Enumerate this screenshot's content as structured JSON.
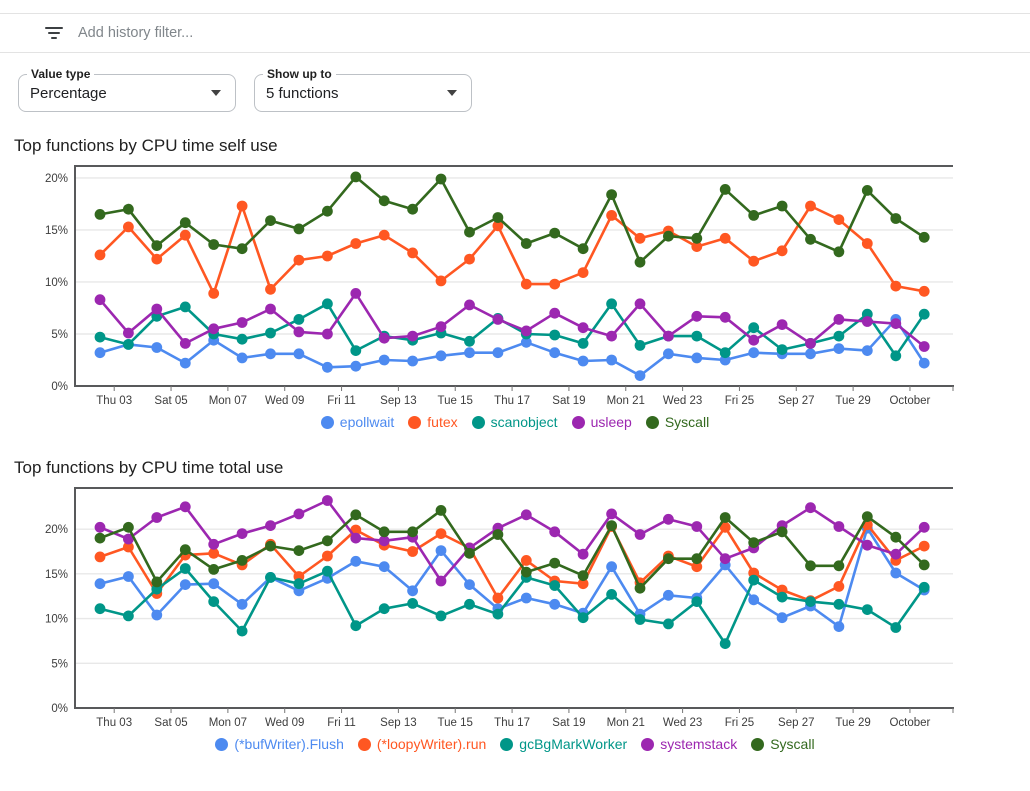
{
  "filter_bar": {
    "icon": "filter-list-icon",
    "placeholder": "Add history filter..."
  },
  "controls": {
    "value_type": {
      "label": "Value type",
      "value": "Percentage"
    },
    "show_up_to": {
      "label": "Show up to",
      "value": "5 functions"
    }
  },
  "colors": {
    "blue": "#4d8af0",
    "orange": "#ff5722",
    "teal": "#009688",
    "purple": "#9c27b0",
    "green": "#33691e",
    "grid": "#e8e8e8",
    "frame": "#58595b",
    "axis_text": "#3d3d3d"
  },
  "chart_data": [
    {
      "type": "line",
      "title": "Top functions by CPU time self use",
      "x_tick_labels": [
        "Thu 03",
        "Sat 05",
        "Mon 07",
        "Wed 09",
        "Fri 11",
        "Sep 13",
        "Tue 15",
        "Thu 17",
        "Sat 19",
        "Mon 21",
        "Wed 23",
        "Fri 25",
        "Sep 27",
        "Tue 29",
        "October"
      ],
      "x_note": "30 daily samples; labeled ticks fall between samples, every 2 days",
      "yticks": [
        0,
        5,
        10,
        15,
        20
      ],
      "ytick_suffix": "%",
      "ylim": [
        0,
        21.15
      ],
      "grid": true,
      "legend_position": "bottom",
      "series": [
        {
          "name": "epollwait",
          "color": "#4d8af0",
          "values": [
            3.2,
            4.0,
            3.7,
            2.2,
            4.4,
            2.7,
            3.1,
            3.1,
            1.8,
            1.9,
            2.5,
            2.4,
            2.9,
            3.2,
            3.2,
            4.2,
            3.2,
            2.4,
            2.5,
            1.0,
            3.1,
            2.7,
            2.5,
            3.2,
            3.1,
            3.1,
            3.6,
            3.4,
            6.4,
            2.2
          ]
        },
        {
          "name": "futex",
          "color": "#ff5722",
          "values": [
            12.6,
            15.3,
            12.2,
            14.5,
            8.9,
            17.3,
            9.3,
            12.1,
            12.5,
            13.7,
            14.5,
            12.8,
            10.1,
            12.2,
            15.4,
            9.8,
            9.8,
            10.9,
            16.4,
            14.2,
            14.9,
            13.4,
            14.2,
            12.0,
            13.0,
            17.3,
            16.0,
            13.7,
            9.6,
            9.1
          ]
        },
        {
          "name": "scanobject",
          "color": "#009688",
          "values": [
            4.7,
            4.0,
            6.7,
            7.6,
            5.0,
            4.5,
            5.1,
            6.4,
            7.9,
            3.4,
            4.8,
            4.4,
            5.1,
            4.3,
            6.5,
            5.0,
            4.9,
            4.1,
            7.9,
            3.9,
            4.8,
            4.8,
            3.2,
            5.6,
            3.5,
            4.1,
            4.8,
            6.9,
            2.9,
            6.9
          ]
        },
        {
          "name": "usleep",
          "color": "#9c27b0",
          "values": [
            8.3,
            5.1,
            7.4,
            4.1,
            5.5,
            6.1,
            7.4,
            5.2,
            5.0,
            8.9,
            4.6,
            4.8,
            5.7,
            7.8,
            6.4,
            5.3,
            7.0,
            5.6,
            4.8,
            7.9,
            4.8,
            6.7,
            6.6,
            4.4,
            5.9,
            4.1,
            6.4,
            6.2,
            6.0,
            3.8
          ]
        },
        {
          "name": "Syscall",
          "color": "#33691e",
          "values": [
            16.5,
            17.0,
            13.5,
            15.7,
            13.6,
            13.2,
            15.9,
            15.1,
            16.8,
            20.1,
            17.8,
            17.0,
            19.9,
            14.8,
            16.2,
            13.7,
            14.7,
            13.2,
            18.4,
            11.9,
            14.4,
            14.2,
            18.9,
            16.4,
            17.3,
            14.1,
            12.9,
            18.8,
            16.1,
            14.3
          ]
        }
      ]
    },
    {
      "type": "line",
      "title": "Top functions by CPU time total use",
      "x_tick_labels": [
        "Thu 03",
        "Sat 05",
        "Mon 07",
        "Wed 09",
        "Fri 11",
        "Sep 13",
        "Tue 15",
        "Thu 17",
        "Sat 19",
        "Mon 21",
        "Wed 23",
        "Fri 25",
        "Sep 27",
        "Tue 29",
        "October"
      ],
      "x_note": "30 daily samples; labeled ticks fall between samples, every 2 days",
      "yticks": [
        0,
        5,
        10,
        15,
        20
      ],
      "ytick_suffix": "%",
      "ylim": [
        0,
        24.6
      ],
      "grid": true,
      "legend_position": "bottom",
      "series": [
        {
          "name": "(*bufWriter).Flush",
          "color": "#4d8af0",
          "values": [
            13.9,
            14.7,
            10.4,
            13.8,
            13.9,
            11.6,
            14.6,
            13.1,
            14.5,
            16.4,
            15.8,
            13.1,
            17.6,
            13.8,
            11.1,
            12.3,
            11.6,
            10.6,
            15.8,
            10.5,
            12.6,
            12.3,
            16.0,
            12.1,
            10.1,
            11.4,
            9.1,
            20.1,
            15.1,
            13.2
          ]
        },
        {
          "name": "(*loopyWriter).run",
          "color": "#ff5722",
          "values": [
            16.9,
            18.0,
            12.8,
            17.1,
            17.3,
            16.0,
            18.3,
            14.7,
            17.0,
            19.9,
            18.2,
            17.5,
            19.5,
            17.9,
            12.3,
            16.5,
            14.2,
            13.9,
            20.3,
            14.0,
            17.0,
            15.8,
            20.2,
            15.1,
            13.2,
            12.0,
            13.6,
            20.5,
            16.5,
            18.1
          ]
        },
        {
          "name": "gcBgMarkWorker",
          "color": "#009688",
          "values": [
            11.1,
            10.3,
            13.3,
            15.6,
            11.9,
            8.6,
            14.6,
            13.9,
            15.3,
            9.2,
            11.1,
            11.7,
            10.3,
            11.6,
            10.5,
            14.6,
            13.7,
            10.1,
            12.7,
            9.9,
            9.4,
            11.9,
            7.2,
            14.3,
            12.4,
            11.9,
            11.6,
            11.0,
            9.0,
            13.5
          ]
        },
        {
          "name": "systemstack",
          "color": "#9c27b0",
          "values": [
            20.2,
            18.9,
            21.3,
            22.5,
            18.3,
            19.5,
            20.4,
            21.7,
            23.2,
            19.0,
            18.7,
            19.1,
            14.2,
            17.9,
            20.1,
            21.6,
            19.7,
            17.2,
            21.7,
            19.4,
            21.1,
            20.3,
            16.7,
            17.9,
            20.4,
            22.4,
            20.3,
            18.2,
            17.2,
            20.2
          ]
        },
        {
          "name": "Syscall",
          "color": "#33691e",
          "values": [
            19.0,
            20.2,
            14.1,
            17.7,
            15.5,
            16.5,
            18.1,
            17.6,
            18.7,
            21.6,
            19.7,
            19.7,
            22.1,
            17.3,
            19.4,
            15.2,
            16.2,
            14.8,
            20.4,
            13.4,
            16.7,
            16.7,
            21.3,
            18.5,
            19.7,
            15.9,
            15.9,
            21.4,
            19.1,
            16.0
          ]
        }
      ]
    }
  ]
}
